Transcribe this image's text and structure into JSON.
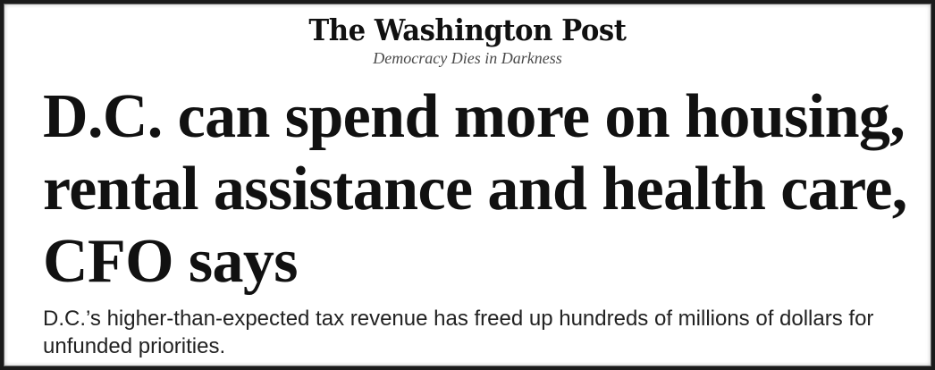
{
  "masthead": {
    "logo_text": "The Washington Post",
    "tagline": "Democracy Dies in Darkness"
  },
  "article": {
    "headline": "D.C. can spend more on housing, rental assistance and health care, CFO says",
    "dek": "D.C.’s higher-than-expected tax revenue has freed up hundreds of millions of dollars for unfunded priorities."
  },
  "colors": {
    "background": "#ffffff",
    "text": "#111111",
    "tagline": "#4a4a4a",
    "border": "#1a1a1a"
  }
}
